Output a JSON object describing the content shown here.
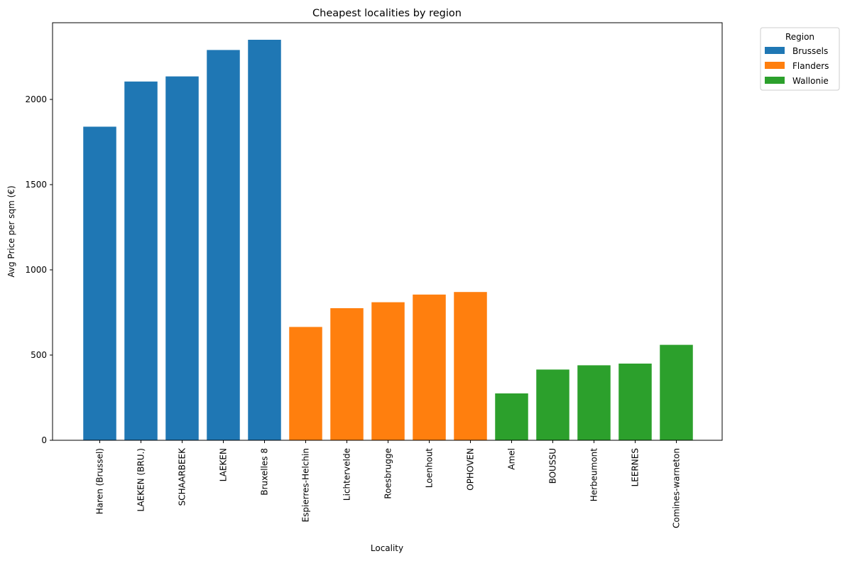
{
  "chart_data": {
    "type": "bar",
    "title": "Cheapest localities by region",
    "xlabel": "Locality",
    "ylabel": "Avg Price per sqm (€)",
    "ylim": [
      0,
      2450
    ],
    "yticks": [
      0,
      500,
      1000,
      1500,
      2000
    ],
    "grid": false,
    "legend": {
      "title": "Region",
      "placement": "outside top-right"
    },
    "categories": [
      "Haren (Brussel)",
      "LAEKEN (BRU.)",
      "SCHAARBEEK",
      "LAEKEN",
      "Bruxelles 8",
      "Espierres-Helchin",
      "Lichtervelde",
      "Roesbrugge",
      "Loenhout",
      "OPHOVEN",
      "Amel",
      "BOUSSU",
      "Herbeumont",
      "LEERNES",
      "Comines-warneton"
    ],
    "values": [
      1840,
      2105,
      2135,
      2290,
      2350,
      665,
      775,
      810,
      855,
      870,
      275,
      415,
      440,
      450,
      560
    ],
    "regions": [
      "Brussels",
      "Brussels",
      "Brussels",
      "Brussels",
      "Brussels",
      "Flanders",
      "Flanders",
      "Flanders",
      "Flanders",
      "Flanders",
      "Wallonie",
      "Wallonie",
      "Wallonie",
      "Wallonie",
      "Wallonie"
    ],
    "series": [
      {
        "name": "Brussels",
        "color": "#1f77b4"
      },
      {
        "name": "Flanders",
        "color": "#ff7f0e"
      },
      {
        "name": "Wallonie",
        "color": "#2ca02c"
      }
    ]
  }
}
